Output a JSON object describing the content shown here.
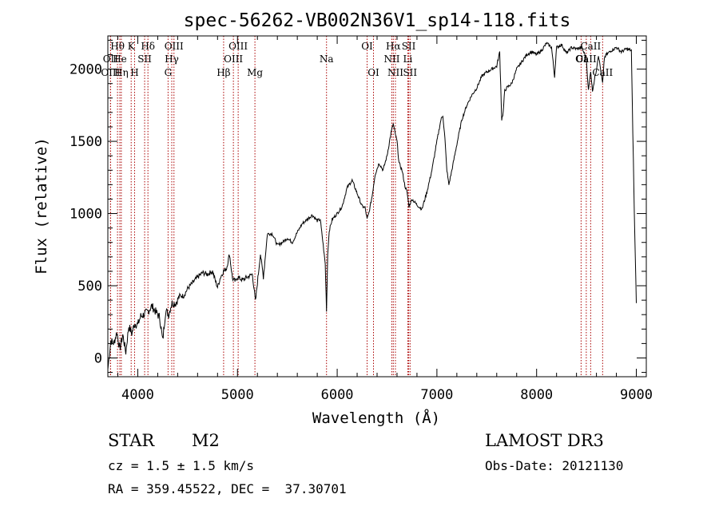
{
  "chart_data": {
    "type": "line",
    "title": "spec-56262-VB002N36V1_sp14-118.fits",
    "xlabel": "Wavelength (Å)",
    "ylabel": "Flux (relative)",
    "xlim": [
      3700,
      9100
    ],
    "ylim": [
      -130,
      2230
    ],
    "xticks": [
      4000,
      5000,
      6000,
      7000,
      8000,
      9000
    ],
    "yticks": [
      0,
      500,
      1000,
      1500,
      2000
    ],
    "grid": false,
    "series": [
      {
        "name": "flux",
        "x": [
          3700,
          3730,
          3760,
          3790,
          3820,
          3850,
          3880,
          3910,
          3940,
          3970,
          4000,
          4030,
          4060,
          4100,
          4140,
          4180,
          4220,
          4250,
          4280,
          4310,
          4340,
          4380,
          4420,
          4460,
          4500,
          4550,
          4600,
          4650,
          4700,
          4750,
          4780,
          4800,
          4830,
          4860,
          4890,
          4920,
          4950,
          4980,
          5000,
          5050,
          5100,
          5150,
          5180,
          5200,
          5230,
          5260,
          5300,
          5350,
          5400,
          5450,
          5500,
          5550,
          5600,
          5650,
          5700,
          5750,
          5800,
          5830,
          5860,
          5880,
          5893,
          5905,
          5920,
          5950,
          6000,
          6050,
          6100,
          6150,
          6200,
          6250,
          6280,
          6300,
          6320,
          6350,
          6380,
          6420,
          6460,
          6500,
          6540,
          6562,
          6580,
          6600,
          6620,
          6650,
          6680,
          6700,
          6720,
          6750,
          6800,
          6850,
          6900,
          6950,
          7000,
          7040,
          7060,
          7080,
          7100,
          7120,
          7150,
          7200,
          7250,
          7300,
          7350,
          7400,
          7450,
          7500,
          7550,
          7600,
          7630,
          7650,
          7665,
          7680,
          7700,
          7750,
          7800,
          7850,
          7900,
          7950,
          8000,
          8050,
          8100,
          8150,
          8180,
          8200,
          8250,
          8300,
          8350,
          8400,
          8450,
          8498,
          8520,
          8542,
          8560,
          8600,
          8620,
          8662,
          8680,
          8700,
          8750,
          8800,
          8850,
          8900,
          8950,
          8980,
          9000
        ],
        "values": [
          -80,
          120,
          100,
          180,
          60,
          160,
          40,
          220,
          170,
          240,
          230,
          290,
          300,
          320,
          360,
          320,
          280,
          120,
          330,
          300,
          380,
          380,
          430,
          430,
          480,
          520,
          560,
          590,
          580,
          600,
          530,
          490,
          560,
          600,
          620,
          720,
          550,
          530,
          560,
          540,
          560,
          580,
          390,
          520,
          720,
          560,
          860,
          860,
          780,
          800,
          830,
          800,
          870,
          930,
          960,
          990,
          950,
          960,
          780,
          650,
          330,
          720,
          880,
          960,
          1000,
          1050,
          1180,
          1230,
          1140,
          1050,
          1040,
          960,
          1010,
          1120,
          1270,
          1350,
          1300,
          1400,
          1560,
          1620,
          1560,
          1500,
          1350,
          1300,
          1190,
          1150,
          1050,
          1100,
          1060,
          1030,
          1150,
          1300,
          1500,
          1650,
          1680,
          1520,
          1300,
          1200,
          1300,
          1480,
          1650,
          1750,
          1820,
          1870,
          1950,
          1980,
          2000,
          2020,
          2120,
          1650,
          1700,
          1850,
          1870,
          1900,
          2000,
          2050,
          2100,
          2120,
          2100,
          2130,
          2180,
          2150,
          1950,
          2150,
          2170,
          2110,
          2150,
          2140,
          2150,
          2080,
          1850,
          1990,
          1850,
          2000,
          2100,
          1900,
          2080,
          2100,
          2130,
          2150,
          2120,
          2140,
          2130,
          1000,
          380
        ]
      }
    ],
    "spectral_lines": [
      {
        "label": "Hθ",
        "wavelength": 3797,
        "row": 1
      },
      {
        "label": "OII",
        "wavelength": 3727,
        "row": 2
      },
      {
        "label": "OIII",
        "wavelength": 3727,
        "row": 3
      },
      {
        "label": "He",
        "wavelength": 3820,
        "row": 2
      },
      {
        "label": "K",
        "wavelength": 3934,
        "row": 1
      },
      {
        "label": "SII",
        "wavelength": 4069,
        "row": 2
      },
      {
        "label": "Hη",
        "wavelength": 3835,
        "row": 3
      },
      {
        "label": "H",
        "wavelength": 3968,
        "row": 3
      },
      {
        "label": "Hδ",
        "wavelength": 4102,
        "row": 1
      },
      {
        "label": "OIII",
        "wavelength": 4363,
        "row": 1
      },
      {
        "label": "Hγ",
        "wavelength": 4341,
        "row": 2
      },
      {
        "label": "G",
        "wavelength": 4304,
        "row": 3
      },
      {
        "label": "OIII",
        "wavelength": 5007,
        "row": 1
      },
      {
        "label": "OIII",
        "wavelength": 4959,
        "row": 2
      },
      {
        "label": "Hβ",
        "wavelength": 4861,
        "row": 3
      },
      {
        "label": "Mg",
        "wavelength": 5175,
        "row": 3
      },
      {
        "label": "Na",
        "wavelength": 5893,
        "row": 2
      },
      {
        "label": "OI",
        "wavelength": 6300,
        "row": 1
      },
      {
        "label": "OI",
        "wavelength": 6364,
        "row": 3
      },
      {
        "label": "Hα",
        "wavelength": 6563,
        "row": 1
      },
      {
        "label": "SII",
        "wavelength": 6717,
        "row": 1
      },
      {
        "label": "NII",
        "wavelength": 6548,
        "row": 2
      },
      {
        "label": "Li",
        "wavelength": 6708,
        "row": 2
      },
      {
        "label": "NII",
        "wavelength": 6584,
        "row": 3
      },
      {
        "label": "SII",
        "wavelength": 6731,
        "row": 3
      },
      {
        "label": "CaII",
        "wavelength": 8542,
        "row": 1
      },
      {
        "label": "OI",
        "wavelength": 8446,
        "row": 2
      },
      {
        "label": "CaII",
        "wavelength": 8498,
        "row": 2
      },
      {
        "label": "CaII",
        "wavelength": 8662,
        "row": 3
      }
    ]
  },
  "info": {
    "class": "STAR",
    "subclass": "M2",
    "survey": "LAMOST DR3",
    "cz": "cz = 1.5 ± 1.5 km/s",
    "obs_date": "Obs-Date: 20121130",
    "coords": "RA = 359.45522, DEC =  37.30701"
  },
  "colors": {
    "line": "#000000",
    "marker": "#aa0000",
    "axis": "#000000"
  }
}
